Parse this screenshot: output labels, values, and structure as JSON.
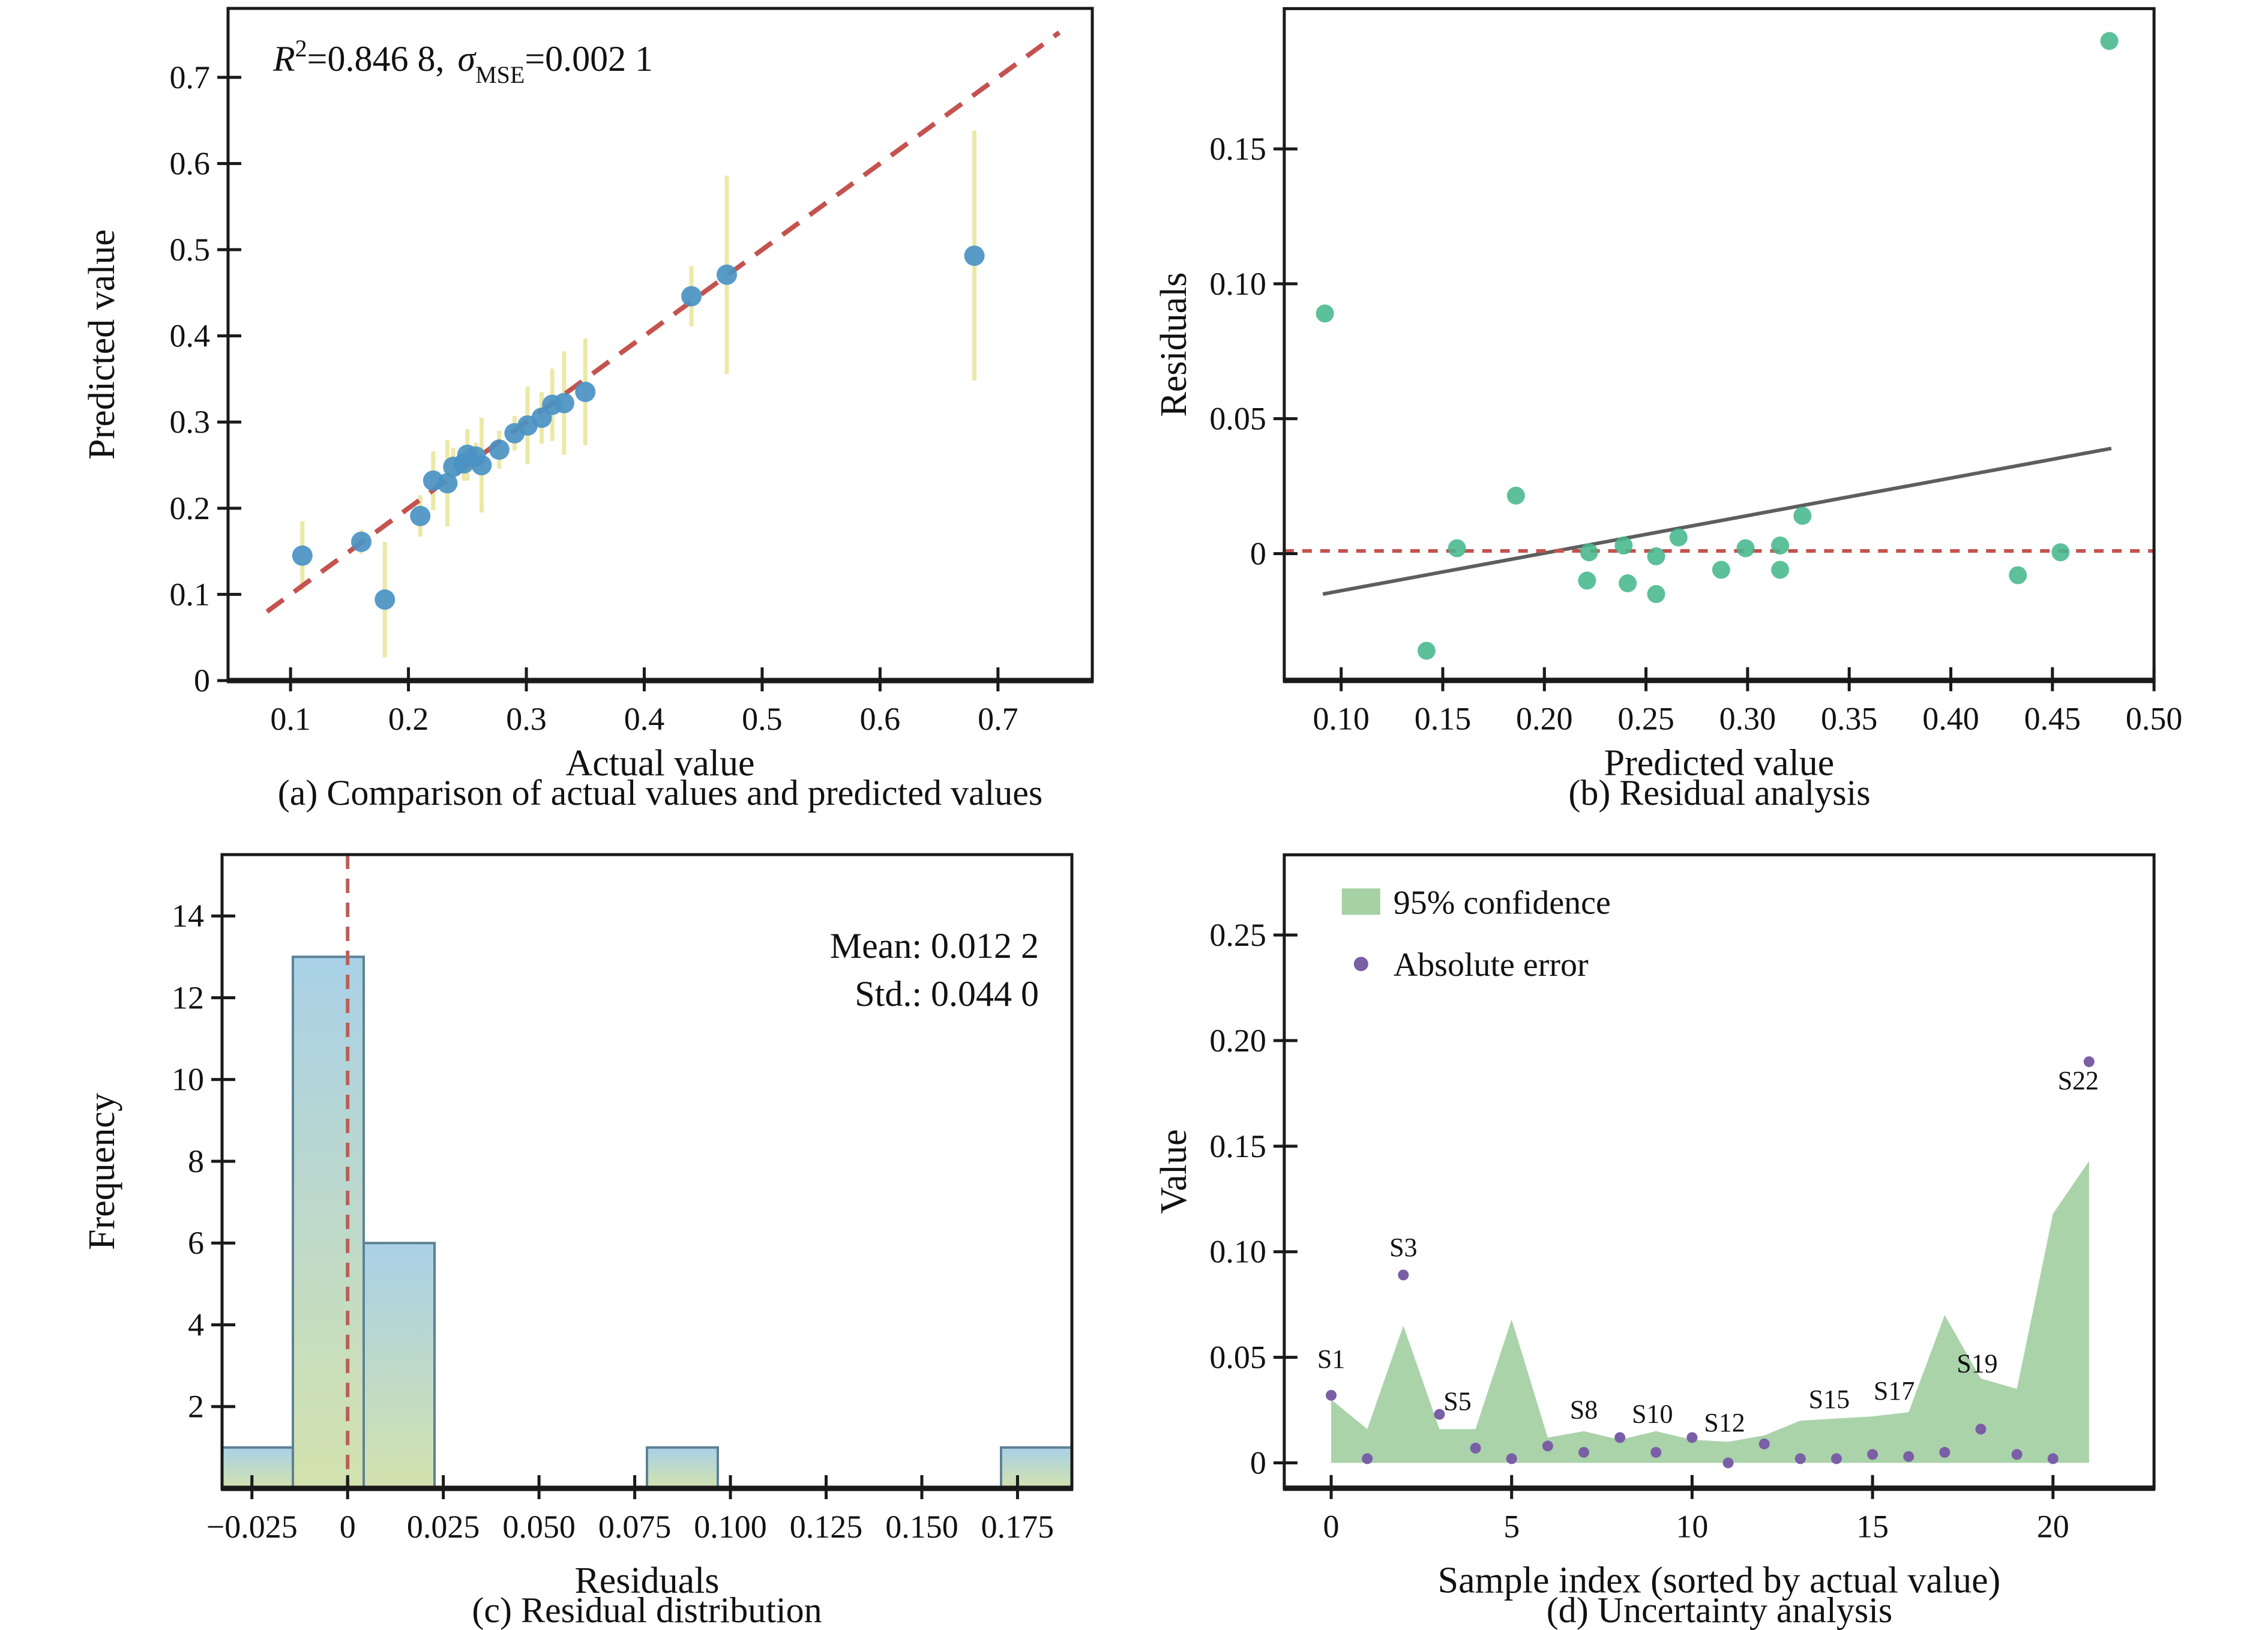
{
  "page": {
    "background": "#ffffff"
  },
  "chart_data": [
    {
      "id": "a",
      "type": "scatter_errorbar",
      "caption": "(a) Comparison of actual values and predicted values",
      "xlabel": "Actual value",
      "ylabel": "Predicted value",
      "annotation": {
        "r2_base": "R",
        "r2_sup": "2",
        "r2_rest": "=0.846 8,",
        "sigma_base": "σ",
        "sigma_sub": "MSE",
        "sigma_rest": "=0.002 1"
      },
      "xlim": [
        0.047,
        0.78
      ],
      "ylim": [
        0,
        0.78
      ],
      "xticks": {
        "values": [
          0.1,
          0.2,
          0.3,
          0.4,
          0.5,
          0.6,
          0.7
        ],
        "labels": [
          "0.1",
          "0.2",
          "0.3",
          "0.4",
          "0.5",
          "0.6",
          "0.7"
        ]
      },
      "yticks": {
        "values": [
          0,
          0.1,
          0.2,
          0.3,
          0.4,
          0.5,
          0.6,
          0.7
        ],
        "labels": [
          "0",
          "0.1",
          "0.2",
          "0.3",
          "0.4",
          "0.5",
          "0.6",
          "0.7"
        ]
      },
      "identity_line": {
        "start": 0.08,
        "end": 0.752
      },
      "points": [
        [
          0.11,
          0.145,
          0.04
        ],
        [
          0.16,
          0.161,
          0.014
        ],
        [
          0.18,
          0.094,
          0.067
        ],
        [
          0.21,
          0.191,
          0.024
        ],
        [
          0.221,
          0.232,
          0.034
        ],
        [
          0.233,
          0.229,
          0.05
        ],
        [
          0.238,
          0.248,
          0.022
        ],
        [
          0.247,
          0.252,
          0.02
        ],
        [
          0.25,
          0.262,
          0.03
        ],
        [
          0.257,
          0.26,
          0.016
        ],
        [
          0.262,
          0.25,
          0.055
        ],
        [
          0.277,
          0.268,
          0.022
        ],
        [
          0.29,
          0.287,
          0.02
        ],
        [
          0.301,
          0.296,
          0.045
        ],
        [
          0.313,
          0.305,
          0.03
        ],
        [
          0.322,
          0.32,
          0.042
        ],
        [
          0.332,
          0.322,
          0.06
        ],
        [
          0.35,
          0.335,
          0.062
        ],
        [
          0.44,
          0.446,
          0.035
        ],
        [
          0.47,
          0.471,
          0.115
        ],
        [
          0.68,
          0.493,
          0.145
        ]
      ],
      "colors": {
        "marker": "#4a92c4",
        "errorbar": "#ece9a6",
        "dashed": "#c4534f"
      }
    },
    {
      "id": "b",
      "type": "residual_scatter",
      "caption": "(b) Residual analysis",
      "xlabel": "Predicted value",
      "ylabel": "Residuals",
      "xlim": [
        0.072,
        0.5
      ],
      "ylim": [
        -0.047,
        0.202
      ],
      "xticks": {
        "values": [
          0.1,
          0.15,
          0.2,
          0.25,
          0.3,
          0.35,
          0.4,
          0.45,
          0.5
        ],
        "labels": [
          "0.10",
          "0.15",
          "0.20",
          "0.25",
          "0.30",
          "0.35",
          "0.40",
          "0.45",
          "0.50"
        ]
      },
      "yticks": {
        "values": [
          0,
          0.05,
          0.1,
          0.15
        ],
        "labels": [
          "0",
          "0.05",
          "0.10",
          "0.15"
        ]
      },
      "trend_line": {
        "x1": 0.091,
        "y1": -0.015,
        "x2": 0.479,
        "y2": 0.039
      },
      "zero_line_y": 0.001,
      "points": [
        [
          0.092,
          0.089
        ],
        [
          0.142,
          -0.036
        ],
        [
          0.157,
          0.002
        ],
        [
          0.186,
          0.0215
        ],
        [
          0.221,
          -0.01
        ],
        [
          0.222,
          0.0005
        ],
        [
          0.239,
          0.003
        ],
        [
          0.241,
          -0.011
        ],
        [
          0.255,
          -0.001
        ],
        [
          0.255,
          -0.015
        ],
        [
          0.266,
          0.006
        ],
        [
          0.287,
          -0.006
        ],
        [
          0.299,
          0.002
        ],
        [
          0.316,
          0.003
        ],
        [
          0.316,
          -0.006
        ],
        [
          0.327,
          0.014
        ],
        [
          0.433,
          -0.008
        ],
        [
          0.454,
          0.0005
        ],
        [
          0.478,
          0.19
        ]
      ],
      "colors": {
        "marker": "#45b78d",
        "trend": "#5e5e5e",
        "dashed": "#c4534f"
      }
    },
    {
      "id": "c",
      "type": "histogram",
      "caption": "(c) Residual distribution",
      "xlabel": "Residuals",
      "ylabel": "Frequency",
      "stats": {
        "mean_label": "Mean: 0.012 2",
        "std_label": "Std.: 0.044 0"
      },
      "xlim": [
        -0.0328,
        0.1892
      ],
      "ylim": [
        0,
        15.5
      ],
      "xticks": {
        "values": [
          -0.025,
          0,
          0.025,
          0.05,
          0.075,
          0.1,
          0.125,
          0.15,
          0.175
        ],
        "labels": [
          "−0.025",
          "0",
          "0.025",
          "0.050",
          "0.075",
          "0.100",
          "0.125",
          "0.150",
          "0.175"
        ]
      },
      "yticks": {
        "values": [
          2,
          4,
          6,
          8,
          10,
          12,
          14
        ],
        "labels": [
          "2",
          "4",
          "6",
          "8",
          "10",
          "12",
          "14"
        ]
      },
      "bars": [
        {
          "x0": -0.0328,
          "x1": -0.0143,
          "h": 1
        },
        {
          "x0": -0.0143,
          "x1": 0.0042,
          "h": 13
        },
        {
          "x0": 0.0042,
          "x1": 0.0227,
          "h": 6
        },
        {
          "x0": 0.0782,
          "x1": 0.0967,
          "h": 1
        },
        {
          "x0": 0.1707,
          "x1": 0.1892,
          "h": 1
        }
      ],
      "vline_x": 0,
      "colors": {
        "bar_top": "#a9d1e7",
        "bar_bottom": "#d3e2ad",
        "bar_edge": "#5d8196",
        "dashed": "#b95f58"
      }
    },
    {
      "id": "d",
      "type": "uncertainty",
      "caption": "(d) Uncertainty analysis",
      "xlabel": "Sample index (sorted by actual value)",
      "ylabel": "Value",
      "legend": [
        {
          "label": "95% confidence",
          "swatch": "area"
        },
        {
          "label": "Absolute error",
          "swatch": "dot"
        }
      ],
      "xlim": [
        -1.3,
        22.8
      ],
      "ylim": [
        -0.012,
        0.288
      ],
      "xticks": {
        "values": [
          0,
          5,
          10,
          15,
          20
        ],
        "labels": [
          "0",
          "5",
          "10",
          "15",
          "20"
        ]
      },
      "yticks": {
        "values": [
          0,
          0.05,
          0.1,
          0.15,
          0.2,
          0.25
        ],
        "labels": [
          "0",
          "0.05",
          "0.10",
          "0.15",
          "0.20",
          "0.25"
        ]
      },
      "sample_index": [
        0,
        1,
        2,
        3,
        4,
        5,
        6,
        7,
        8,
        9,
        10,
        11,
        12,
        13,
        14,
        15,
        16,
        17,
        18,
        19,
        20,
        21
      ],
      "confidence_upper": [
        0.03,
        0.016,
        0.065,
        0.016,
        0.016,
        0.068,
        0.012,
        0.015,
        0.011,
        0.015,
        0.011,
        0.01,
        0.013,
        0.02,
        0.021,
        0.022,
        0.024,
        0.07,
        0.04,
        0.035,
        0.118,
        0.143
      ],
      "absolute_error": [
        0.032,
        0.002,
        0.089,
        0.023,
        0.007,
        0.002,
        0.008,
        0.005,
        0.012,
        0.005,
        0.012,
        0.0,
        0.009,
        0.002,
        0.002,
        0.004,
        0.003,
        0.005,
        0.016,
        0.004,
        0.002,
        0.19
      ],
      "point_labels": [
        {
          "text": "S1",
          "x": 0,
          "y": 0.045
        },
        {
          "text": "S3",
          "x": 2,
          "y": 0.098
        },
        {
          "text": "S5",
          "x": 3.5,
          "y": 0.025
        },
        {
          "text": "S8",
          "x": 7,
          "y": 0.021
        },
        {
          "text": "S10",
          "x": 8.9,
          "y": 0.019
        },
        {
          "text": "S12",
          "x": 10.9,
          "y": 0.015
        },
        {
          "text": "S15",
          "x": 13.8,
          "y": 0.026
        },
        {
          "text": "S17",
          "x": 15.6,
          "y": 0.03
        },
        {
          "text": "S19",
          "x": 17.9,
          "y": 0.043
        },
        {
          "text": "S22",
          "x": 20.7,
          "y": 0.177
        }
      ],
      "colors": {
        "band": "#a5d1a4",
        "marker": "#7a5ea6"
      }
    }
  ]
}
